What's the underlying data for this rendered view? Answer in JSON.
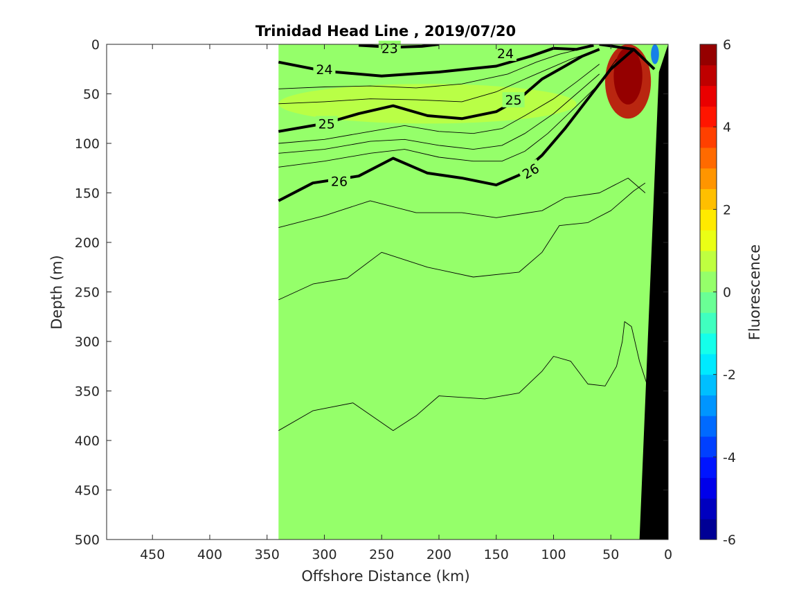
{
  "chart_data": {
    "type": "heatmap",
    "title": "Trinidad Head Line , 2019/07/20",
    "xlabel": "Offshore Distance (km)",
    "ylabel": "Depth (m)",
    "xlim": [
      490,
      0
    ],
    "ylim": [
      0,
      500
    ],
    "x_reversed": true,
    "y_reversed": true,
    "x_ticks": [
      "450",
      "400",
      "350",
      "300",
      "250",
      "200",
      "150",
      "100",
      "50",
      "0"
    ],
    "y_ticks": [
      "0",
      "50",
      "100",
      "150",
      "200",
      "250",
      "300",
      "350",
      "400",
      "450",
      "500"
    ],
    "colorbar": {
      "label": "Fluorescence",
      "range": [
        -6,
        6
      ],
      "ticks": [
        "6",
        "4",
        "2",
        "0",
        "-2",
        "-4",
        "-6"
      ],
      "colormap": "jet",
      "levels": 24
    },
    "background_value": 0.2,
    "data_extent_km": [
      340,
      0
    ],
    "patches": [
      {
        "description": "surface-high",
        "x_range": [
          340,
          80
        ],
        "depth_range": [
          40,
          80
        ],
        "value": 0.8
      },
      {
        "description": "coastal-bloom",
        "x_range": [
          55,
          15
        ],
        "depth_range": [
          0,
          75
        ],
        "value": 5.0
      },
      {
        "description": "nearshore-surface-low",
        "x_range": [
          15,
          8
        ],
        "depth_range": [
          0,
          20
        ],
        "value": -3.5
      }
    ],
    "contours": {
      "variable": "density (sigma-theta)",
      "labeled_levels": [
        "23",
        "24",
        "25",
        "26"
      ],
      "lines": [
        {
          "level": "23",
          "bold": true,
          "points": [
            [
              270,
              1
            ],
            [
              240,
              3
            ],
            [
              215,
              2
            ],
            [
              200,
              0
            ]
          ]
        },
        {
          "level": "24",
          "bold": true,
          "points": [
            [
              340,
              18
            ],
            [
              300,
              27
            ],
            [
              250,
              32
            ],
            [
              200,
              28
            ],
            [
              150,
              22
            ],
            [
              120,
              12
            ],
            [
              100,
              4
            ],
            [
              80,
              5
            ],
            [
              65,
              1
            ]
          ]
        },
        {
          "level": "24",
          "bold": true,
          "points": [
            [
              60,
              0
            ],
            [
              30,
              5
            ],
            [
              12,
              25
            ]
          ]
        },
        {
          "level": "25",
          "bold": true,
          "points": [
            [
              340,
              88
            ],
            [
              300,
              80
            ],
            [
              270,
              70
            ],
            [
              240,
              62
            ],
            [
              210,
              72
            ],
            [
              180,
              75
            ],
            [
              150,
              68
            ],
            [
              130,
              55
            ],
            [
              110,
              35
            ],
            [
              90,
              22
            ],
            [
              75,
              12
            ],
            [
              60,
              5
            ]
          ]
        },
        {
          "level": "26",
          "bold": true,
          "points": [
            [
              340,
              158
            ],
            [
              310,
              140
            ],
            [
              270,
              133
            ],
            [
              240,
              115
            ],
            [
              210,
              130
            ],
            [
              180,
              135
            ],
            [
              150,
              142
            ],
            [
              130,
              132
            ],
            [
              110,
              112
            ],
            [
              90,
              85
            ],
            [
              70,
              55
            ],
            [
              50,
              25
            ],
            [
              30,
              5
            ]
          ]
        },
        {
          "level": "",
          "bold": false,
          "points": [
            [
              340,
              185
            ],
            [
              300,
              173
            ],
            [
              260,
              158
            ],
            [
              220,
              170
            ],
            [
              180,
              170
            ],
            [
              150,
              175
            ],
            [
              110,
              168
            ],
            [
              90,
              155
            ],
            [
              60,
              150
            ],
            [
              35,
              135
            ],
            [
              20,
              150
            ]
          ]
        },
        {
          "level": "",
          "bold": false,
          "points": [
            [
              340,
              258
            ],
            [
              310,
              242
            ],
            [
              280,
              236
            ],
            [
              250,
              210
            ],
            [
              210,
              225
            ],
            [
              170,
              235
            ],
            [
              130,
              230
            ],
            [
              110,
              210
            ],
            [
              95,
              183
            ],
            [
              70,
              180
            ],
            [
              50,
              168
            ],
            [
              30,
              148
            ],
            [
              20,
              140
            ]
          ]
        },
        {
          "level": "",
          "bold": false,
          "points": [
            [
              340,
              390
            ],
            [
              310,
              370
            ],
            [
              275,
              362
            ],
            [
              240,
              390
            ],
            [
              220,
              375
            ],
            [
              200,
              355
            ],
            [
              160,
              358
            ],
            [
              130,
              352
            ],
            [
              110,
              330
            ],
            [
              100,
              315
            ],
            [
              85,
              320
            ],
            [
              70,
              343
            ],
            [
              55,
              345
            ],
            [
              45,
              325
            ],
            [
              40,
              300
            ],
            [
              38,
              280
            ],
            [
              32,
              285
            ],
            [
              25,
              320
            ],
            [
              18,
              345
            ]
          ]
        }
      ]
    },
    "extra_contours": [
      [
        [
          340,
          45
        ],
        [
          300,
          43
        ],
        [
          260,
          42
        ],
        [
          220,
          44
        ],
        [
          180,
          40
        ],
        [
          140,
          30
        ],
        [
          115,
          18
        ],
        [
          95,
          10
        ],
        [
          70,
          3
        ]
      ],
      [
        [
          340,
          60
        ],
        [
          300,
          58
        ],
        [
          260,
          55
        ],
        [
          220,
          56
        ],
        [
          180,
          58
        ],
        [
          150,
          48
        ],
        [
          125,
          35
        ],
        [
          105,
          25
        ],
        [
          85,
          15
        ],
        [
          65,
          7
        ]
      ],
      [
        [
          340,
          100
        ],
        [
          300,
          96
        ],
        [
          260,
          88
        ],
        [
          230,
          82
        ],
        [
          200,
          88
        ],
        [
          170,
          90
        ],
        [
          145,
          85
        ],
        [
          125,
          72
        ],
        [
          100,
          55
        ],
        [
          80,
          38
        ],
        [
          60,
          20
        ]
      ],
      [
        [
          340,
          110
        ],
        [
          300,
          106
        ],
        [
          260,
          98
        ],
        [
          230,
          96
        ],
        [
          200,
          102
        ],
        [
          170,
          106
        ],
        [
          145,
          102
        ],
        [
          125,
          90
        ],
        [
          100,
          70
        ],
        [
          80,
          50
        ],
        [
          60,
          30
        ]
      ],
      [
        [
          340,
          124
        ],
        [
          300,
          118
        ],
        [
          260,
          110
        ],
        [
          230,
          106
        ],
        [
          200,
          114
        ],
        [
          170,
          118
        ],
        [
          145,
          118
        ],
        [
          125,
          108
        ],
        [
          105,
          90
        ],
        [
          85,
          68
        ],
        [
          62,
          42
        ],
        [
          45,
          15
        ]
      ]
    ],
    "bottom_topography": {
      "color": "#000000",
      "points": [
        [
          25,
          500
        ],
        [
          0,
          500
        ],
        [
          0,
          0
        ],
        [
          8,
          28
        ]
      ]
    }
  }
}
